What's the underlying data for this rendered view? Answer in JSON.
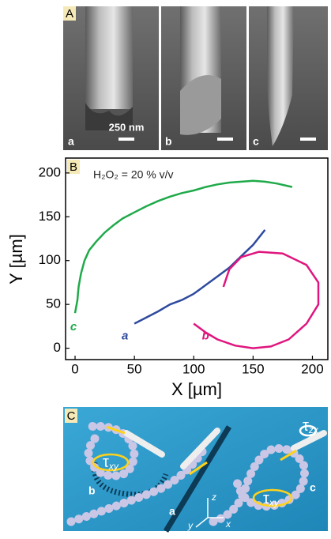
{
  "panel_a": {
    "label": "A",
    "images": [
      {
        "label": "a",
        "scale": "250 nm"
      },
      {
        "label": "b"
      },
      {
        "label": "c"
      }
    ]
  },
  "chart_data": {
    "type": "line",
    "panel_label": "B",
    "annotation": "H₂O₂ = 20 % v/v",
    "x_label": "X [µm]",
    "y_label": "Y [µm]",
    "xlim": [
      -8,
      213
    ],
    "ylim": [
      -13,
      217
    ],
    "xticks": [
      0,
      50,
      100,
      150,
      200
    ],
    "yticks": [
      0,
      50,
      100,
      150,
      200
    ],
    "series": [
      {
        "name": "c",
        "color": "#1faa4a",
        "x": [
          0,
          2,
          3,
          5,
          8,
          12,
          18,
          25,
          32,
          40,
          50,
          60,
          70,
          80,
          90,
          100,
          110,
          120,
          130,
          140,
          150,
          160,
          170,
          183
        ],
        "values": [
          40,
          55,
          70,
          85,
          100,
          112,
          122,
          132,
          140,
          148,
          155,
          162,
          168,
          173,
          177,
          180,
          184,
          187,
          189,
          190,
          191,
          190,
          188,
          184
        ]
      },
      {
        "name": "a",
        "color": "#2e4a9e",
        "x": [
          50,
          60,
          70,
          80,
          90,
          100,
          110,
          120,
          130,
          140,
          150,
          160
        ],
        "values": [
          28,
          35,
          42,
          50,
          55,
          62,
          72,
          82,
          92,
          105,
          118,
          135
        ]
      },
      {
        "name": "b",
        "color": "#e0157e",
        "x": [
          100,
          110,
          120,
          135,
          150,
          165,
          180,
          195,
          205,
          205,
          195,
          175,
          155,
          140,
          130,
          125
        ],
        "values": [
          28,
          18,
          10,
          3,
          0,
          2,
          10,
          28,
          50,
          75,
          95,
          108,
          110,
          104,
          90,
          70
        ]
      }
    ]
  },
  "panel_c": {
    "label": "C",
    "torques": [
      {
        "symbol": "τ",
        "sub": "xy"
      },
      {
        "symbol": "τ",
        "sub": "xy"
      },
      {
        "symbol": "τ",
        "sub": "zx"
      }
    ],
    "paths": [
      "a",
      "b",
      "c"
    ],
    "axes": [
      "z",
      "y",
      "x"
    ]
  }
}
